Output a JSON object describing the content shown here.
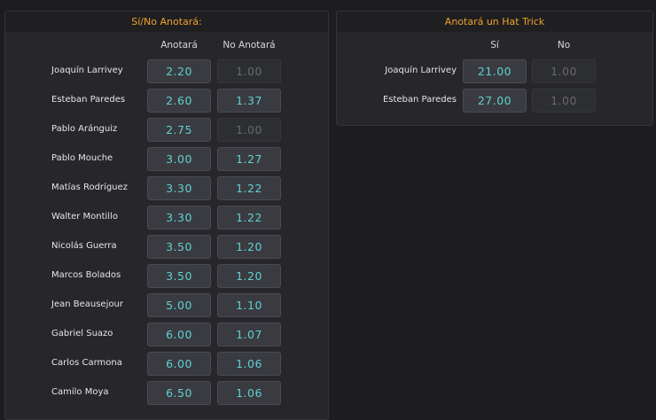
{
  "panels": [
    {
      "title": "Sí/No Anotará:",
      "columns": [
        "Anotará",
        "No Anotará"
      ],
      "rows": [
        {
          "player": "Joaquín Larrivey",
          "odds": [
            "2.20",
            "1.00"
          ],
          "locked": [
            false,
            true
          ]
        },
        {
          "player": "Esteban Paredes",
          "odds": [
            "2.60",
            "1.37"
          ],
          "locked": [
            false,
            false
          ]
        },
        {
          "player": "Pablo Aránguiz",
          "odds": [
            "2.75",
            "1.00"
          ],
          "locked": [
            false,
            true
          ]
        },
        {
          "player": "Pablo Mouche",
          "odds": [
            "3.00",
            "1.27"
          ],
          "locked": [
            false,
            false
          ]
        },
        {
          "player": "Matías Rodríguez",
          "odds": [
            "3.30",
            "1.22"
          ],
          "locked": [
            false,
            false
          ]
        },
        {
          "player": "Walter Montillo",
          "odds": [
            "3.30",
            "1.22"
          ],
          "locked": [
            false,
            false
          ]
        },
        {
          "player": "Nicolás Guerra",
          "odds": [
            "3.50",
            "1.20"
          ],
          "locked": [
            false,
            false
          ]
        },
        {
          "player": "Marcos Bolados",
          "odds": [
            "3.50",
            "1.20"
          ],
          "locked": [
            false,
            false
          ]
        },
        {
          "player": "Jean Beausejour",
          "odds": [
            "5.00",
            "1.10"
          ],
          "locked": [
            false,
            false
          ]
        },
        {
          "player": "Gabriel Suazo",
          "odds": [
            "6.00",
            "1.07"
          ],
          "locked": [
            false,
            false
          ]
        },
        {
          "player": "Carlos Carmona",
          "odds": [
            "6.00",
            "1.06"
          ],
          "locked": [
            false,
            false
          ]
        },
        {
          "player": "Camilo Moya",
          "odds": [
            "6.50",
            "1.06"
          ],
          "locked": [
            false,
            false
          ]
        }
      ]
    },
    {
      "title": "Anotará un Hat Trick",
      "columns": [
        "Sí",
        "No"
      ],
      "rows": [
        {
          "player": "Joaquín Larrivey",
          "odds": [
            "21.00",
            "1.00"
          ],
          "locked": [
            false,
            true
          ]
        },
        {
          "player": "Esteban Paredes",
          "odds": [
            "27.00",
            "1.00"
          ],
          "locked": [
            false,
            true
          ]
        }
      ]
    }
  ]
}
